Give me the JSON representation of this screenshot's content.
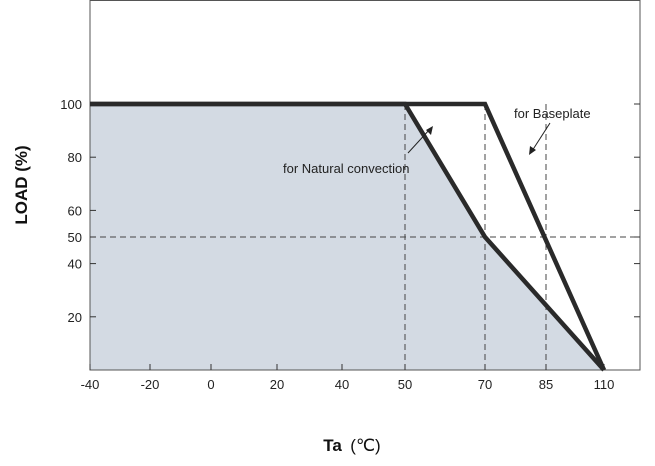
{
  "chart_data": {
    "type": "line",
    "xlabel": "Ta",
    "xlabel_unit": "(℃)",
    "ylabel": "LOAD (%)",
    "xlim": [
      -40,
      110
    ],
    "ylim": [
      0,
      110
    ],
    "x_ticks": [
      {
        "value": -40,
        "label": "-40"
      },
      {
        "value": -20,
        "label": "-20"
      },
      {
        "value": 0,
        "label": "0"
      },
      {
        "value": 20,
        "label": "20"
      },
      {
        "value": 40,
        "label": "40"
      },
      {
        "value": 50,
        "label": "50"
      },
      {
        "value": 70,
        "label": "70"
      },
      {
        "value": 85,
        "label": "85"
      },
      {
        "value": 110,
        "label": "110"
      }
    ],
    "y_ticks": [
      {
        "value": 20,
        "label": "20"
      },
      {
        "value": 40,
        "label": "40"
      },
      {
        "value": 50,
        "label": "50"
      },
      {
        "value": 60,
        "label": "60"
      },
      {
        "value": 80,
        "label": "80"
      },
      {
        "value": 100,
        "label": "100"
      }
    ],
    "series": [
      {
        "name": "for Natural convection",
        "x": [
          -40,
          50,
          70,
          110
        ],
        "y": [
          100,
          100,
          50,
          0
        ],
        "fill_area": true,
        "fill_color": "#d3dae3"
      },
      {
        "name": "for Baseplate",
        "x": [
          -40,
          70,
          110
        ],
        "y": [
          100,
          100,
          0
        ]
      }
    ],
    "reference_lines": [
      {
        "axis": "x",
        "value": 50
      },
      {
        "axis": "x",
        "value": 70
      },
      {
        "axis": "x",
        "value": 85
      },
      {
        "axis": "y",
        "value": 50
      }
    ],
    "line_color": "#2a2a2a",
    "grid": false,
    "legend": "none"
  }
}
